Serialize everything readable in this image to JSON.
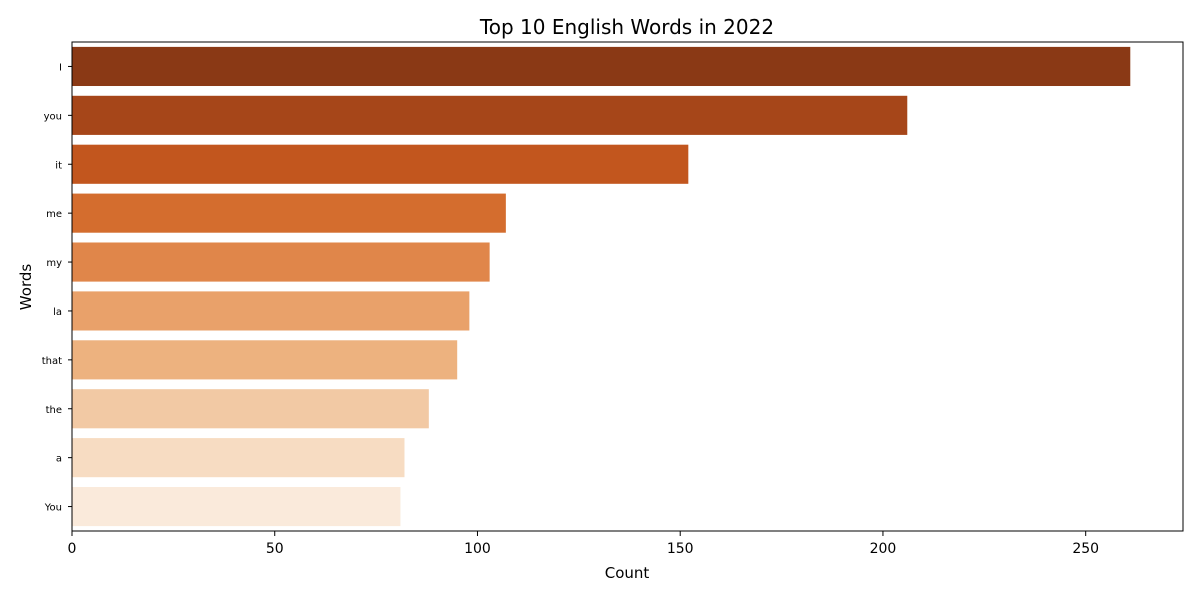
{
  "chart_data": {
    "type": "bar",
    "orientation": "horizontal",
    "title": "Top 10 English Words in 2022",
    "xlabel": "Count",
    "ylabel": "Words",
    "categories": [
      "I",
      "you",
      "it",
      "me",
      "my",
      "la",
      "that",
      "the",
      "a",
      "You"
    ],
    "values": [
      261,
      206,
      152,
      107,
      103,
      98,
      95,
      88,
      82,
      81
    ],
    "colors": [
      "#8a3915",
      "#a64619",
      "#c2561e",
      "#d46d2e",
      "#e0864a",
      "#e9a16a",
      "#edb27f",
      "#f2c9a4",
      "#f7dcc2",
      "#faeadb"
    ],
    "xlim": [
      0,
      274
    ],
    "xticks": [
      0,
      50,
      100,
      150,
      200,
      250
    ],
    "grid": false,
    "legend": false
  }
}
